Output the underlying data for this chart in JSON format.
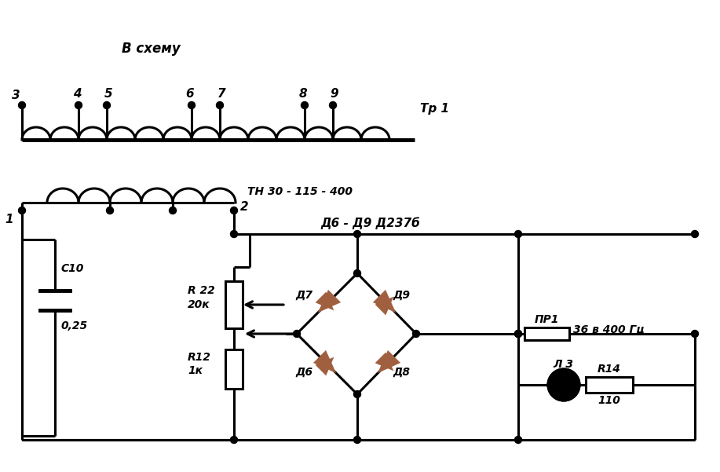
{
  "bg_color": "#ffffff",
  "line_color": "#000000",
  "diode_color": "#a06040",
  "text_v_схему": "В схему",
  "text_tr1": "Тр 1",
  "text_tn": "ТН 30 - 115 - 400",
  "text_d6d9": "Д6 - Д9 Д237б",
  "text_36v": "36 в 400 Гц",
  "text_c10": "С10",
  "text_025": "0,25",
  "text_r22": "R 22",
  "text_20k": "20к",
  "text_r12": "R12",
  "text_1k": "1к",
  "text_pr1": "ПР1",
  "text_l3": "Л 3",
  "text_r14": "R14",
  "text_110": "110",
  "text_d7": "Д7",
  "text_d9": "Д9",
  "text_d6": "Д6",
  "text_d8": "Д8"
}
